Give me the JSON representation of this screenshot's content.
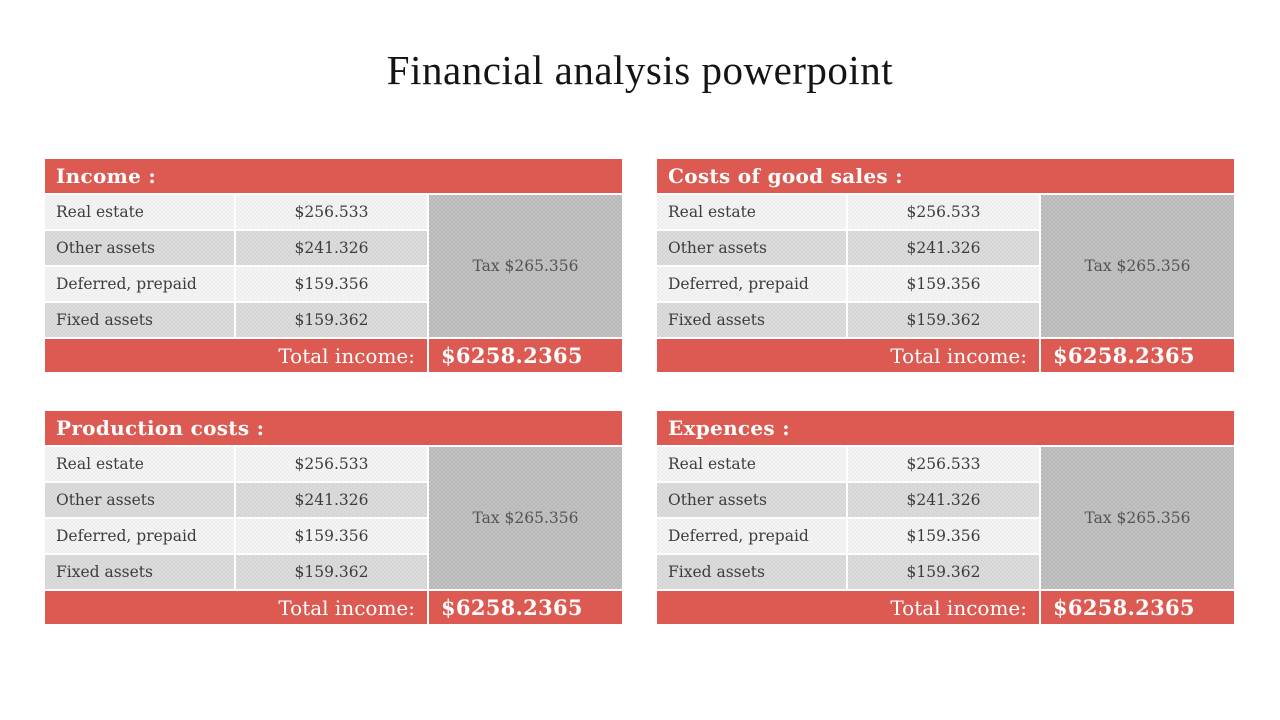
{
  "slide": {
    "title": "Financial analysis powerpoint"
  },
  "colors": {
    "accent_red": "#DC5A51",
    "row_light": "#F2F2F2",
    "row_dark": "#D9D9D9",
    "tax_gray": "#BDBDBD",
    "text_dark": "#3D3D3D",
    "text_white": "#FFFFFF"
  },
  "tables": [
    {
      "title": "Income :",
      "rows": [
        {
          "label": "Real estate",
          "value": "$256.533"
        },
        {
          "label": "Other assets",
          "value": "$241.326"
        },
        {
          "label": "Deferred, prepaid",
          "value": "$159.356"
        },
        {
          "label": "Fixed assets",
          "value": "$159.362"
        }
      ],
      "tax": "Tax $265.356",
      "total_label": "Total income:",
      "total_value": "$6258.2365"
    },
    {
      "title": "Costs of good sales :",
      "rows": [
        {
          "label": "Real estate",
          "value": "$256.533"
        },
        {
          "label": "Other assets",
          "value": "$241.326"
        },
        {
          "label": "Deferred, prepaid",
          "value": "$159.356"
        },
        {
          "label": "Fixed assets",
          "value": "$159.362"
        }
      ],
      "tax": "Tax $265.356",
      "total_label": "Total income:",
      "total_value": "$6258.2365"
    },
    {
      "title": "Production costs :",
      "rows": [
        {
          "label": "Real estate",
          "value": "$256.533"
        },
        {
          "label": "Other assets",
          "value": "$241.326"
        },
        {
          "label": "Deferred, prepaid",
          "value": "$159.356"
        },
        {
          "label": "Fixed assets",
          "value": "$159.362"
        }
      ],
      "tax": "Tax $265.356",
      "total_label": "Total income:",
      "total_value": "$6258.2365"
    },
    {
      "title": "Expences :",
      "rows": [
        {
          "label": "Real estate",
          "value": "$256.533"
        },
        {
          "label": "Other assets",
          "value": "$241.326"
        },
        {
          "label": "Deferred, prepaid",
          "value": "$159.356"
        },
        {
          "label": "Fixed assets",
          "value": "$159.362"
        }
      ],
      "tax": "Tax $265.356",
      "total_label": "Total income:",
      "total_value": "$6258.2365"
    }
  ]
}
